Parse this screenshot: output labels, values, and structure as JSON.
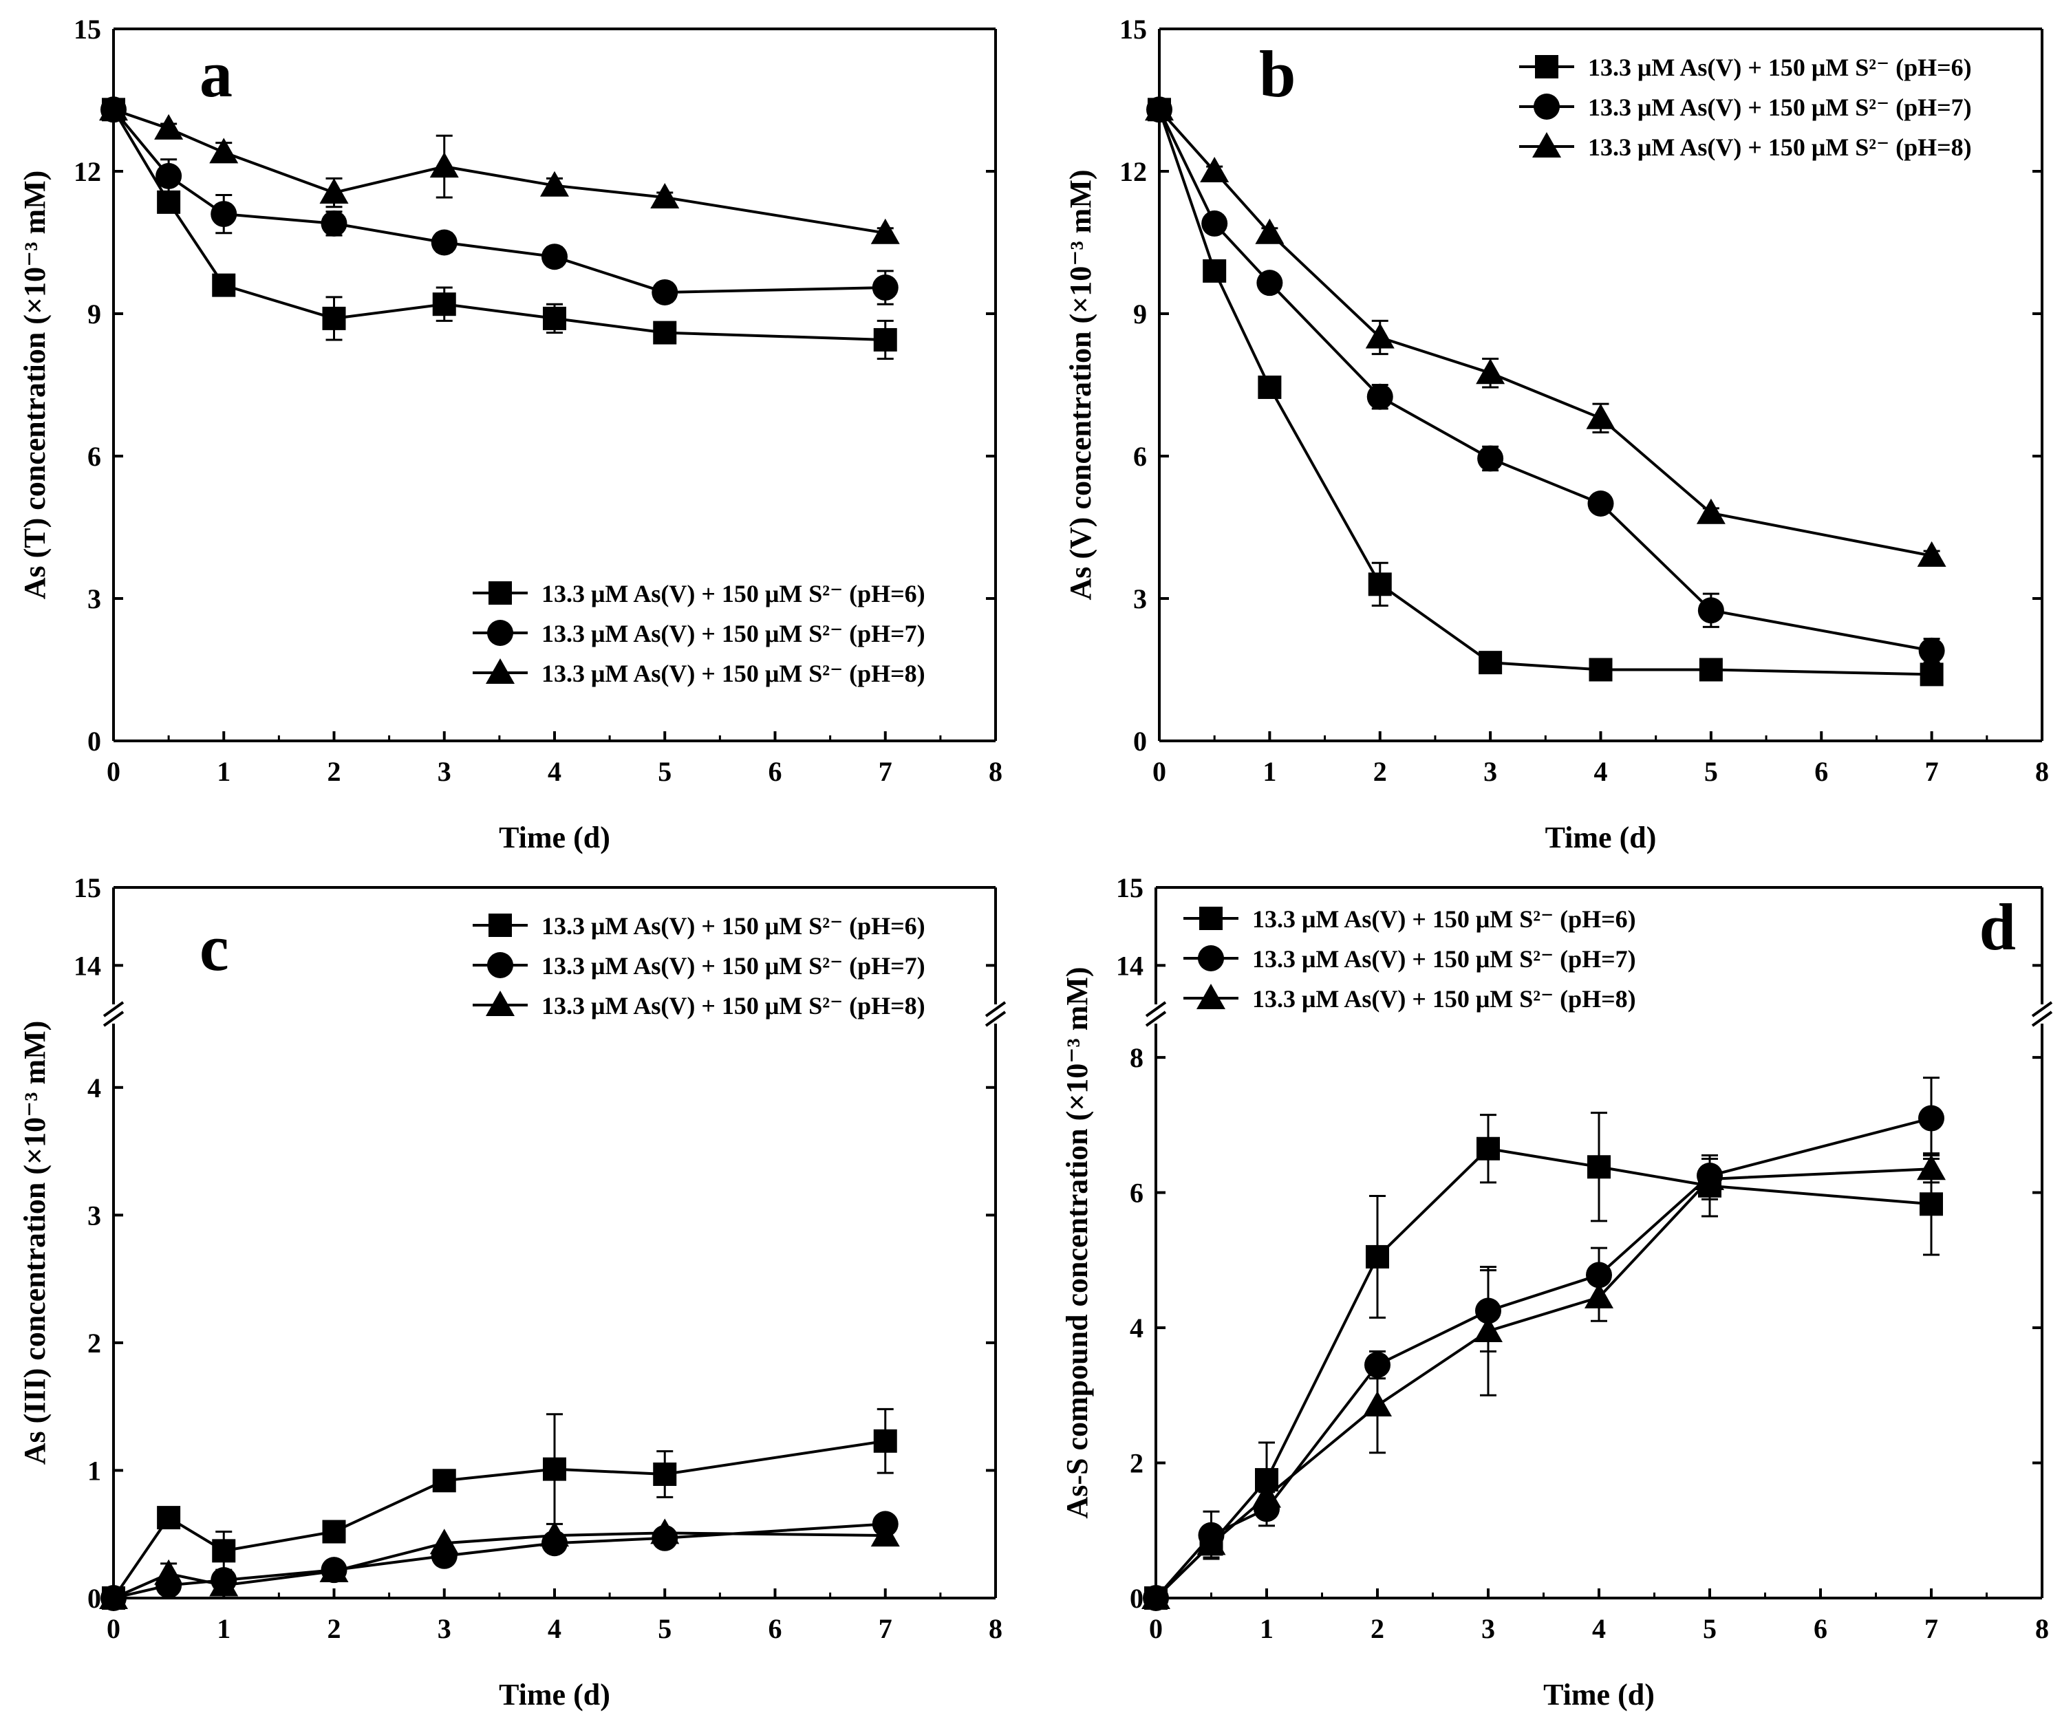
{
  "figure": {
    "legend_entries": [
      "13.3 μM As(V) + 150 μM S²⁻ (pH=6)",
      "13.3 μM As(V) + 150 μM S²⁻ (pH=7)",
      "13.3 μM As(V) + 150 μM S²⁻ (pH=8)"
    ],
    "series_markers": [
      "square-marker",
      "circle-marker",
      "triangle-marker"
    ],
    "line_color": "#000000"
  },
  "chart_data": [
    {
      "panel_label": "a",
      "type": "line",
      "xlabel": "Time (d)",
      "ylabel": "As (T) concentration (×10⁻³ mM)",
      "xlim": [
        0,
        8
      ],
      "ylim": [
        0,
        15
      ],
      "xticks": [
        0,
        1,
        2,
        3,
        4,
        5,
        6,
        7,
        8
      ],
      "yticks": [
        0,
        3,
        6,
        9,
        12,
        15
      ],
      "axis_break": false,
      "legend_position": "bottom-right",
      "x": [
        0,
        0.5,
        1,
        2,
        3,
        4,
        5,
        7
      ],
      "series": [
        {
          "name": "13.3 μM As(V) + 150 μM S²⁻ (pH=6)",
          "marker": "square",
          "values": [
            13.3,
            11.35,
            9.6,
            8.9,
            9.2,
            8.9,
            8.6,
            8.45
          ],
          "errors": [
            0.05,
            0.2,
            0.2,
            0.45,
            0.35,
            0.3,
            0.2,
            0.4
          ]
        },
        {
          "name": "13.3 μM As(V) + 150 μM S²⁻ (pH=7)",
          "marker": "circle",
          "values": [
            13.3,
            11.9,
            11.1,
            10.9,
            10.5,
            10.2,
            9.45,
            9.55
          ],
          "errors": [
            0.05,
            0.35,
            0.4,
            0.25,
            0.2,
            0.2,
            0.2,
            0.35
          ]
        },
        {
          "name": "13.3 μM As(V) + 150 μM S²⁻ (pH=8)",
          "marker": "triangle",
          "values": [
            13.3,
            12.9,
            12.4,
            11.55,
            12.1,
            11.7,
            11.45,
            10.7
          ],
          "errors": [
            0.05,
            0.1,
            0.2,
            0.3,
            0.65,
            0.15,
            0.1,
            0.1
          ]
        }
      ]
    },
    {
      "panel_label": "b",
      "type": "line",
      "xlabel": "Time (d)",
      "ylabel": "As (V) concentration (×10⁻³ mM)",
      "xlim": [
        0,
        8
      ],
      "ylim": [
        0,
        15
      ],
      "xticks": [
        0,
        1,
        2,
        3,
        4,
        5,
        6,
        7,
        8
      ],
      "yticks": [
        0,
        3,
        6,
        9,
        12,
        15
      ],
      "axis_break": false,
      "legend_position": "top-right",
      "x": [
        0,
        0.5,
        1,
        2,
        3,
        4,
        5,
        7
      ],
      "series": [
        {
          "name": "13.3 μM As(V) + 150 μM S²⁻ (pH=6)",
          "marker": "square",
          "values": [
            13.3,
            9.9,
            7.45,
            3.3,
            1.65,
            1.5,
            1.5,
            1.4
          ],
          "errors": [
            0.05,
            0.1,
            0.15,
            0.45,
            0.1,
            0.1,
            0.1,
            0.15
          ]
        },
        {
          "name": "13.3 μM As(V) + 150 μM S²⁻ (pH=7)",
          "marker": "circle",
          "values": [
            13.3,
            10.9,
            9.65,
            7.25,
            5.95,
            5.0,
            2.75,
            1.9
          ],
          "errors": [
            0.05,
            0.1,
            0.1,
            0.25,
            0.25,
            0.1,
            0.35,
            0.25
          ]
        },
        {
          "name": "13.3 μM As(V) + 150 μM S²⁻ (pH=8)",
          "marker": "triangle",
          "values": [
            13.3,
            12.0,
            10.7,
            8.5,
            7.75,
            6.8,
            4.8,
            3.9
          ],
          "errors": [
            0.05,
            0.1,
            0.1,
            0.35,
            0.3,
            0.3,
            0.1,
            0.1
          ]
        }
      ]
    },
    {
      "panel_label": "c",
      "type": "line",
      "xlabel": "Time (d)",
      "ylabel": "As (III) concentration (×10⁻³ mM)",
      "xlim": [
        0,
        8
      ],
      "ylim": [
        0,
        15
      ],
      "xticks": [
        0,
        1,
        2,
        3,
        4,
        5,
        6,
        7,
        8
      ],
      "yticks": [
        0,
        1,
        2,
        3,
        4,
        14,
        15
      ],
      "axis_break": true,
      "break_range": [
        4.5,
        13.5
      ],
      "legend_position": "top-right",
      "x": [
        0,
        0.5,
        1,
        2,
        3,
        4,
        5,
        7
      ],
      "series": [
        {
          "name": "13.3 μM As(V) + 150 μM S²⁻ (pH=6)",
          "marker": "square",
          "values": [
            0,
            0.63,
            0.37,
            0.52,
            0.92,
            1.01,
            0.97,
            1.23
          ],
          "errors": [
            0.02,
            0.05,
            0.15,
            0.05,
            0.08,
            0.43,
            0.18,
            0.25
          ]
        },
        {
          "name": "13.3 μM As(V) + 150 μM S²⁻ (pH=7)",
          "marker": "circle",
          "values": [
            0,
            0.1,
            0.14,
            0.22,
            0.33,
            0.43,
            0.47,
            0.58
          ],
          "errors": [
            0.02,
            0.05,
            0.05,
            0.05,
            0.05,
            0.05,
            0.05,
            0.05
          ]
        },
        {
          "name": "13.3 μM As(V) + 150 μM S²⁻ (pH=8)",
          "marker": "triangle",
          "values": [
            0,
            0.19,
            0.1,
            0.21,
            0.43,
            0.49,
            0.51,
            0.49
          ],
          "errors": [
            0.02,
            0.08,
            0.05,
            0.05,
            0.05,
            0.05,
            0.05,
            0.05
          ]
        }
      ]
    },
    {
      "panel_label": "d",
      "type": "line",
      "xlabel": "Time (d)",
      "ylabel": "As-S compound concentration (×10⁻³ mM)",
      "xlim": [
        0,
        8
      ],
      "ylim": [
        0,
        15
      ],
      "xticks": [
        0,
        1,
        2,
        3,
        4,
        5,
        6,
        7,
        8
      ],
      "yticks": [
        0,
        2,
        4,
        6,
        8,
        14,
        15
      ],
      "axis_break": true,
      "break_range": [
        8.5,
        13.5
      ],
      "legend_position": "top-left",
      "x": [
        0,
        0.5,
        1,
        2,
        3,
        4,
        5,
        7
      ],
      "series": [
        {
          "name": "13.3 μM As(V) + 150 μM S²⁻ (pH=6)",
          "marker": "square",
          "values": [
            0,
            0.8,
            1.75,
            5.05,
            6.65,
            6.38,
            6.1,
            5.83
          ],
          "errors": [
            0.05,
            0.2,
            0.55,
            0.9,
            0.5,
            0.8,
            0.45,
            0.75
          ]
        },
        {
          "name": "13.3 μM As(V) + 150 μM S²⁻ (pH=7)",
          "marker": "circle",
          "values": [
            0,
            0.93,
            1.32,
            3.45,
            4.25,
            4.78,
            6.25,
            7.1
          ],
          "errors": [
            0.05,
            0.35,
            0.25,
            0.2,
            0.6,
            0.4,
            0.3,
            0.6
          ]
        },
        {
          "name": "13.3 μM As(V) + 150 μM S²⁻ (pH=8)",
          "marker": "triangle",
          "values": [
            0,
            0.8,
            1.5,
            2.85,
            3.95,
            4.45,
            6.2,
            6.35
          ],
          "errors": [
            0.05,
            0.2,
            0.25,
            0.7,
            0.95,
            0.35,
            0.3,
            0.2
          ]
        }
      ]
    }
  ]
}
